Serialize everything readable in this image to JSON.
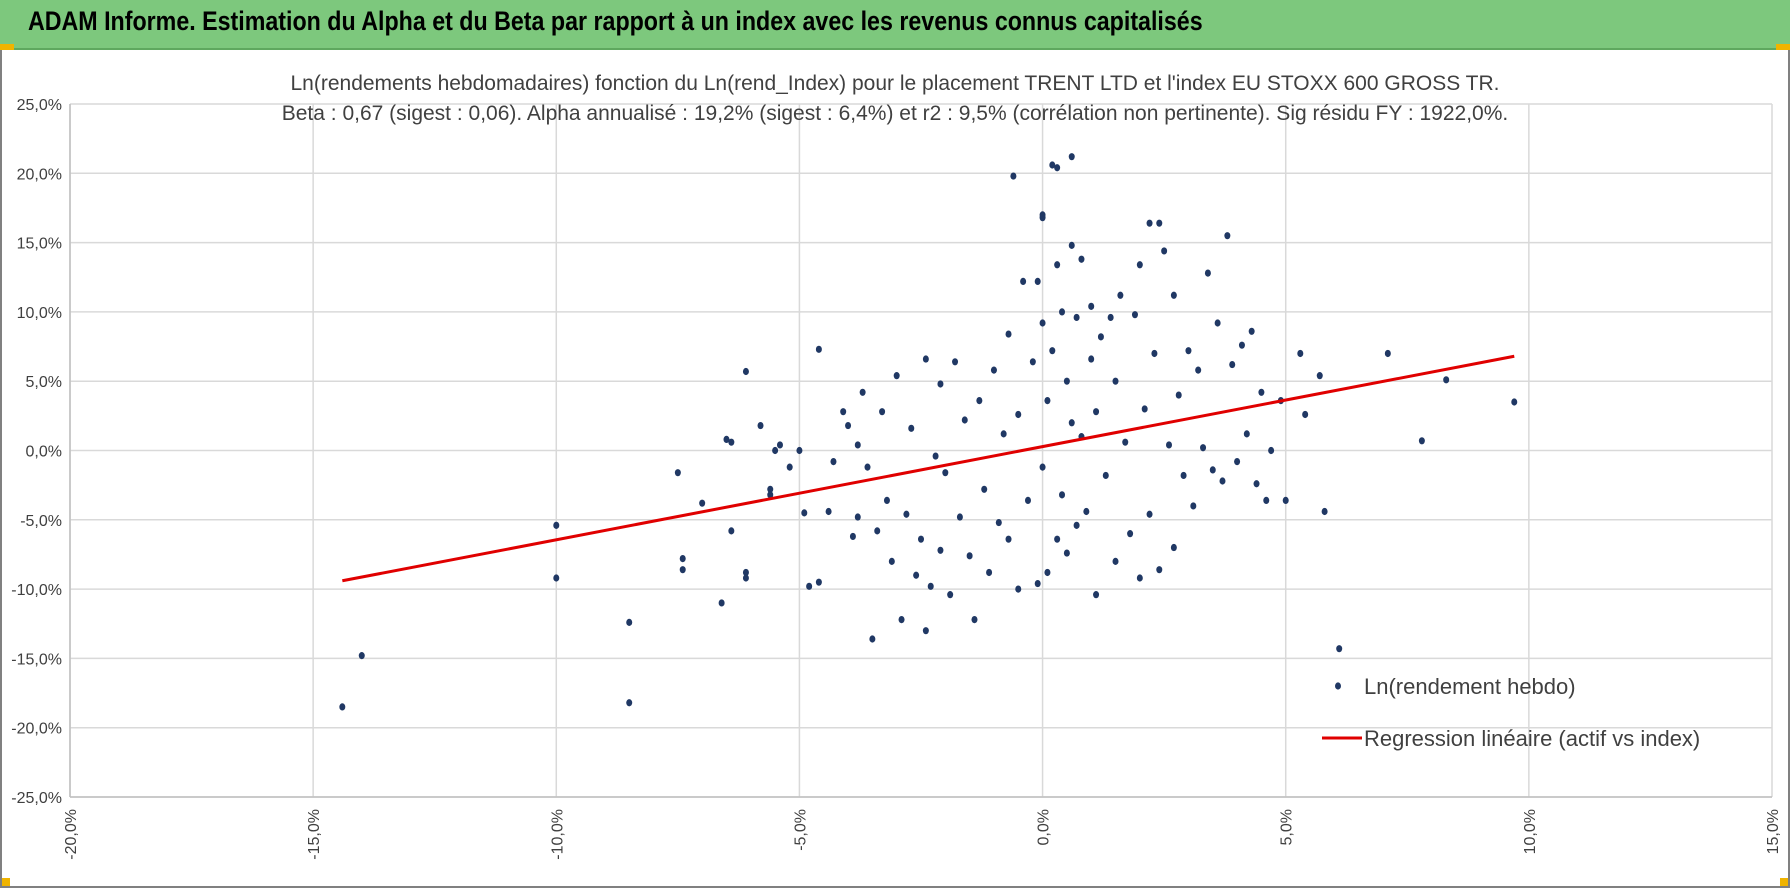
{
  "header": {
    "title": "ADAM Informe. Estimation du Alpha et du Beta par rapport à un index avec les revenus connus capitalisés"
  },
  "colors": {
    "header_bg": "#7dc87d",
    "points": "#203864",
    "regression": "#e00000",
    "grid": "#d9d9d9"
  },
  "chart_data": {
    "type": "scatter",
    "title": "Ln(rendements hebdomadaires) fonction du Ln(rend_Index) pour le placement TRENT LTD et l'index EU STOXX 600 GROSS TR.",
    "subtitle": "Beta : 0,67 (sigest : 0,06).  Alpha annualisé : 19,2% (sigest : 6,4%) et r2 : 9,5% (corrélation non pertinente). Sig résidu FY : 1922,0%.",
    "xlim": [
      -0.2,
      0.15
    ],
    "ylim": [
      -0.25,
      0.25
    ],
    "x_ticks": [
      "-20,0%",
      "-15,0%",
      "-10,0%",
      "-5,0%",
      "0,0%",
      "5,0%",
      "10,0%",
      "15,0%"
    ],
    "x_tick_values": [
      -0.2,
      -0.15,
      -0.1,
      -0.05,
      0.0,
      0.05,
      0.1,
      0.15
    ],
    "y_ticks": [
      "25,0%",
      "20,0%",
      "15,0%",
      "10,0%",
      "5,0%",
      "0,0%",
      "-5,0%",
      "-10,0%",
      "-15,0%",
      "-20,0%",
      "-25,0%"
    ],
    "y_tick_values": [
      0.25,
      0.2,
      0.15,
      0.1,
      0.05,
      0.0,
      -0.05,
      -0.1,
      -0.15,
      -0.2,
      -0.25
    ],
    "grid": true,
    "legend_position": "bottom-right",
    "series": [
      {
        "name": "Ln(rendement hebdo)",
        "kind": "points",
        "points": [
          [
            -0.144,
            -0.185
          ],
          [
            -0.14,
            -0.148
          ],
          [
            -0.1,
            -0.054
          ],
          [
            -0.1,
            -0.092
          ],
          [
            -0.085,
            -0.124
          ],
          [
            -0.085,
            -0.182
          ],
          [
            -0.075,
            -0.016
          ],
          [
            -0.074,
            -0.078
          ],
          [
            -0.074,
            -0.086
          ],
          [
            -0.07,
            -0.038
          ],
          [
            -0.066,
            -0.11
          ],
          [
            -0.065,
            0.008
          ],
          [
            -0.064,
            0.006
          ],
          [
            -0.064,
            -0.058
          ],
          [
            -0.061,
            0.057
          ],
          [
            -0.061,
            -0.088
          ],
          [
            -0.061,
            -0.092
          ],
          [
            -0.058,
            0.018
          ],
          [
            -0.056,
            -0.028
          ],
          [
            -0.056,
            -0.032
          ],
          [
            -0.055,
            0.0
          ],
          [
            -0.054,
            0.004
          ],
          [
            -0.052,
            -0.012
          ],
          [
            -0.05,
            0.0
          ],
          [
            -0.049,
            -0.045
          ],
          [
            -0.048,
            -0.098
          ],
          [
            -0.046,
            0.073
          ],
          [
            -0.046,
            -0.095
          ],
          [
            -0.044,
            -0.044
          ],
          [
            -0.043,
            -0.008
          ],
          [
            -0.041,
            0.028
          ],
          [
            -0.04,
            0.018
          ],
          [
            -0.039,
            -0.062
          ],
          [
            -0.038,
            0.004
          ],
          [
            -0.038,
            -0.048
          ],
          [
            -0.037,
            0.042
          ],
          [
            -0.036,
            -0.012
          ],
          [
            -0.035,
            -0.136
          ],
          [
            -0.034,
            -0.058
          ],
          [
            -0.033,
            0.028
          ],
          [
            -0.032,
            -0.036
          ],
          [
            -0.031,
            -0.08
          ],
          [
            -0.03,
            0.054
          ],
          [
            -0.029,
            -0.122
          ],
          [
            -0.028,
            -0.046
          ],
          [
            -0.027,
            0.016
          ],
          [
            -0.026,
            -0.09
          ],
          [
            -0.025,
            -0.064
          ],
          [
            -0.024,
            0.066
          ],
          [
            -0.024,
            -0.13
          ],
          [
            -0.023,
            -0.098
          ],
          [
            -0.022,
            -0.004
          ],
          [
            -0.021,
            0.048
          ],
          [
            -0.021,
            -0.072
          ],
          [
            -0.02,
            -0.016
          ],
          [
            -0.019,
            -0.104
          ],
          [
            -0.018,
            0.064
          ],
          [
            -0.017,
            -0.048
          ],
          [
            -0.016,
            0.022
          ],
          [
            -0.015,
            -0.076
          ],
          [
            -0.014,
            -0.122
          ],
          [
            -0.013,
            0.036
          ],
          [
            -0.012,
            -0.028
          ],
          [
            -0.011,
            -0.088
          ],
          [
            -0.01,
            0.058
          ],
          [
            -0.009,
            -0.052
          ],
          [
            -0.008,
            0.012
          ],
          [
            -0.007,
            -0.064
          ],
          [
            -0.007,
            0.084
          ],
          [
            -0.006,
            0.198
          ],
          [
            -0.005,
            -0.1
          ],
          [
            -0.005,
            0.026
          ],
          [
            -0.004,
            0.122
          ],
          [
            -0.003,
            -0.036
          ],
          [
            -0.002,
            0.064
          ],
          [
            -0.001,
            0.122
          ],
          [
            -0.001,
            -0.096
          ],
          [
            0.0,
            0.168
          ],
          [
            0.0,
            0.17
          ],
          [
            0.0,
            0.092
          ],
          [
            0.0,
            -0.012
          ],
          [
            0.001,
            0.036
          ],
          [
            0.001,
            -0.088
          ],
          [
            0.002,
            0.206
          ],
          [
            0.002,
            0.072
          ],
          [
            0.003,
            0.204
          ],
          [
            0.003,
            -0.064
          ],
          [
            0.003,
            0.134
          ],
          [
            0.004,
            0.1
          ],
          [
            0.004,
            -0.032
          ],
          [
            0.005,
            0.05
          ],
          [
            0.005,
            -0.074
          ],
          [
            0.006,
            0.212
          ],
          [
            0.006,
            0.148
          ],
          [
            0.006,
            0.02
          ],
          [
            0.007,
            0.096
          ],
          [
            0.007,
            -0.054
          ],
          [
            0.008,
            0.01
          ],
          [
            0.008,
            0.138
          ],
          [
            0.009,
            -0.044
          ],
          [
            0.01,
            0.104
          ],
          [
            0.01,
            0.066
          ],
          [
            0.011,
            -0.104
          ],
          [
            0.011,
            0.028
          ],
          [
            0.012,
            0.082
          ],
          [
            0.013,
            -0.018
          ],
          [
            0.014,
            0.096
          ],
          [
            0.015,
            -0.08
          ],
          [
            0.015,
            0.05
          ],
          [
            0.016,
            0.112
          ],
          [
            0.017,
            0.006
          ],
          [
            0.018,
            -0.06
          ],
          [
            0.019,
            0.098
          ],
          [
            0.02,
            0.134
          ],
          [
            0.02,
            -0.092
          ],
          [
            0.021,
            0.03
          ],
          [
            0.022,
            0.164
          ],
          [
            0.022,
            -0.046
          ],
          [
            0.023,
            0.07
          ],
          [
            0.024,
            0.164
          ],
          [
            0.024,
            -0.086
          ],
          [
            0.025,
            0.144
          ],
          [
            0.026,
            0.004
          ],
          [
            0.027,
            0.112
          ],
          [
            0.027,
            -0.07
          ],
          [
            0.028,
            0.04
          ],
          [
            0.029,
            -0.018
          ],
          [
            0.03,
            0.072
          ],
          [
            0.031,
            -0.04
          ],
          [
            0.032,
            0.058
          ],
          [
            0.033,
            0.002
          ],
          [
            0.034,
            0.128
          ],
          [
            0.035,
            -0.014
          ],
          [
            0.036,
            0.092
          ],
          [
            0.037,
            -0.022
          ],
          [
            0.038,
            0.155
          ],
          [
            0.039,
            0.062
          ],
          [
            0.04,
            -0.008
          ],
          [
            0.041,
            0.076
          ],
          [
            0.042,
            0.012
          ],
          [
            0.043,
            0.086
          ],
          [
            0.044,
            -0.024
          ],
          [
            0.045,
            0.042
          ],
          [
            0.046,
            -0.036
          ],
          [
            0.047,
            0.0
          ],
          [
            0.049,
            0.036
          ],
          [
            0.05,
            -0.036
          ],
          [
            0.053,
            0.07
          ],
          [
            0.054,
            0.026
          ],
          [
            0.057,
            0.054
          ],
          [
            0.058,
            -0.044
          ],
          [
            0.061,
            -0.143
          ],
          [
            0.071,
            0.07
          ],
          [
            0.078,
            0.007
          ],
          [
            0.083,
            0.051
          ],
          [
            0.097,
            0.035
          ]
        ]
      },
      {
        "name": "Regression linéaire (actif vs index)",
        "kind": "line",
        "points": [
          [
            -0.144,
            -0.094
          ],
          [
            0.097,
            0.068
          ]
        ]
      }
    ]
  }
}
